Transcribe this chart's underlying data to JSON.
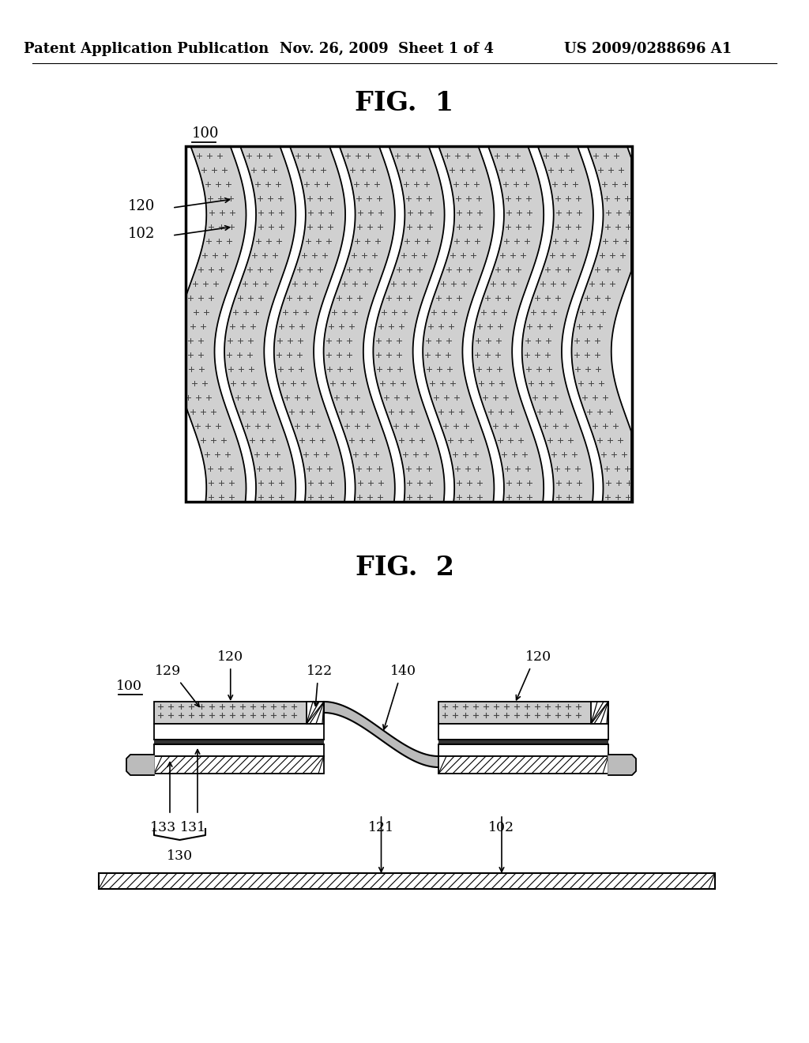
{
  "bg_color": "#ffffff",
  "text_color": "#000000",
  "header_left": "Patent Application Publication",
  "header_mid": "Nov. 26, 2009  Sheet 1 of 4",
  "header_right": "US 2009/0288696 A1",
  "fig1_title": "FIG.  1",
  "fig2_title": "FIG.  2",
  "label_100_fig1": "100",
  "label_120_fig1": "120",
  "label_102_fig1": "102",
  "label_100_fig2": "100",
  "label_120a_fig2": "120",
  "label_120b_fig2": "120",
  "label_129": "129",
  "label_122": "122",
  "label_140": "140",
  "label_131": "131",
  "label_133": "133",
  "label_130": "130",
  "label_121": "121",
  "label_102_fig2": "102"
}
